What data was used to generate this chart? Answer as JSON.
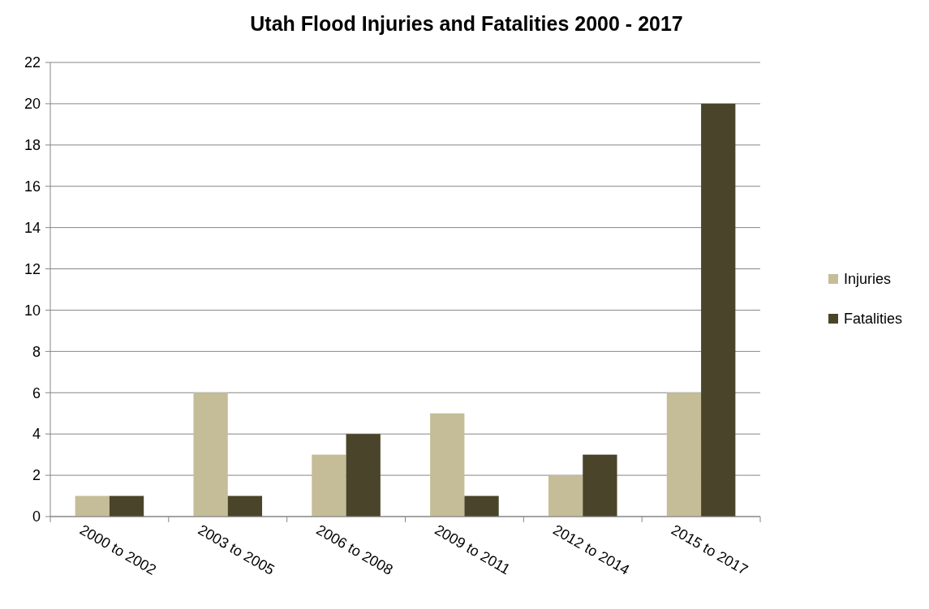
{
  "chart_data": {
    "type": "bar",
    "title": "Utah Flood Injuries and Fatalities 2000 - 2017",
    "categories": [
      "2000 to 2002",
      "2003 to 2005",
      "2006 to 2008",
      "2009 to 2011",
      "2012 to 2014",
      "2015 to 2017"
    ],
    "series": [
      {
        "name": "Injuries",
        "color": "#c4bd97",
        "values": [
          1,
          6,
          3,
          5,
          2,
          6
        ]
      },
      {
        "name": "Fatalities",
        "color": "#4a452a",
        "values": [
          1,
          1,
          4,
          1,
          3,
          20
        ]
      }
    ],
    "ylim": [
      0,
      22
    ],
    "yticks": [
      0,
      2,
      4,
      6,
      8,
      10,
      12,
      14,
      16,
      18,
      20,
      22
    ],
    "grid": "y",
    "legend": "right"
  }
}
